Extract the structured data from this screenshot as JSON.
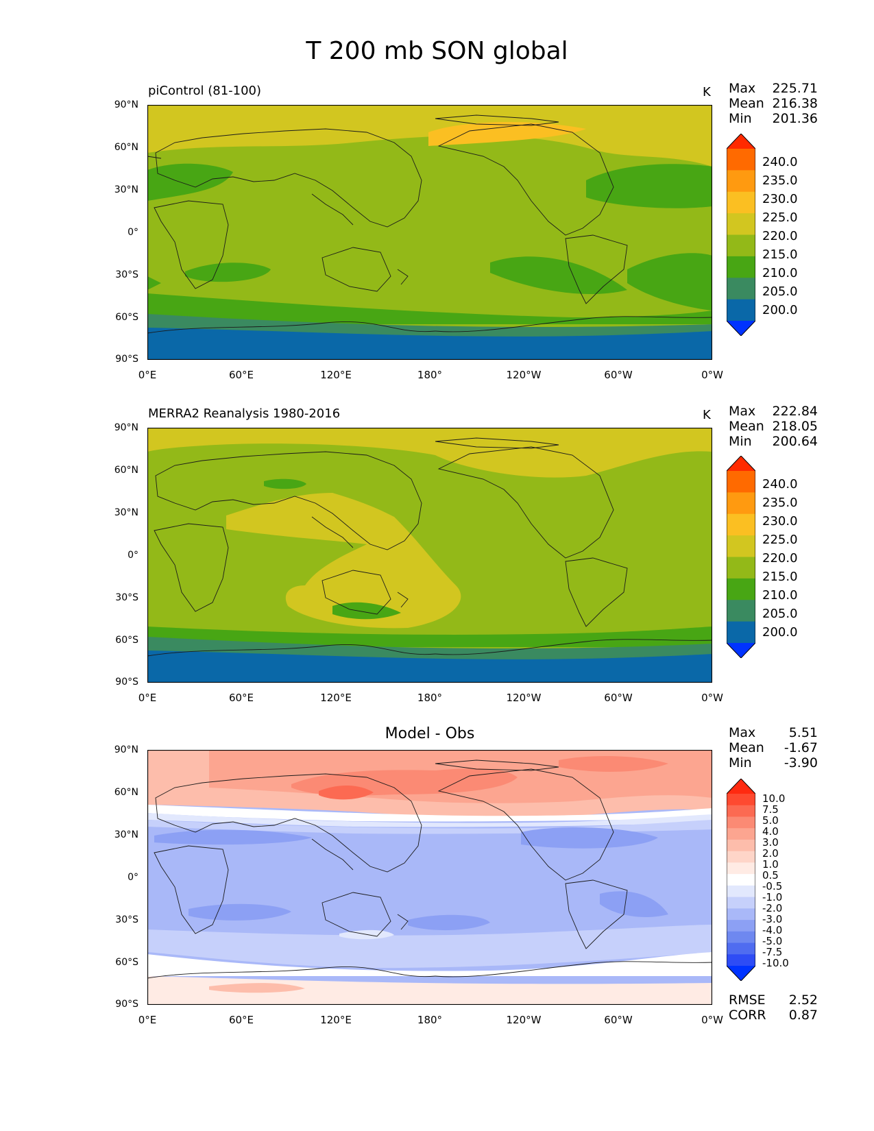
{
  "title": "T 200 mb SON global",
  "x_ticks": [
    "0°E",
    "60°E",
    "120°E",
    "180°",
    "120°W",
    "60°W",
    "0°W"
  ],
  "y_ticks": [
    "90°N",
    "60°N",
    "30°N",
    "0°",
    "30°S",
    "60°S",
    "90°S"
  ],
  "panels": [
    {
      "title": "piControl (81-100)",
      "units": "K",
      "stats": [
        {
          "label": "Max",
          "value": "225.71"
        },
        {
          "label": "Mean",
          "value": "216.38"
        },
        {
          "label": "Min",
          "value": "201.36"
        }
      ],
      "colorbar": {
        "levels": [
          "240.0",
          "235.0",
          "230.0",
          "225.0",
          "220.0",
          "215.0",
          "210.0",
          "205.0",
          "200.0"
        ],
        "colors": [
          "#ff2a00",
          "#ff6a00",
          "#ff9a10",
          "#fbbf22",
          "#d2c620",
          "#93b918",
          "#48a614",
          "#3a8a60",
          "#0a68a8",
          "#0033ff"
        ]
      }
    },
    {
      "title": "MERRA2 Reanalysis 1980-2016",
      "units": "K",
      "stats": [
        {
          "label": "Max",
          "value": "222.84"
        },
        {
          "label": "Mean",
          "value": "218.05"
        },
        {
          "label": "Min",
          "value": "200.64"
        }
      ],
      "colorbar": {
        "levels": [
          "240.0",
          "235.0",
          "230.0",
          "225.0",
          "220.0",
          "215.0",
          "210.0",
          "205.0",
          "200.0"
        ],
        "colors": [
          "#ff2a00",
          "#ff6a00",
          "#ff9a10",
          "#fbbf22",
          "#d2c620",
          "#93b918",
          "#48a614",
          "#3a8a60",
          "#0a68a8",
          "#0033ff"
        ]
      }
    },
    {
      "title": "Model - Obs",
      "units": "",
      "stats": [
        {
          "label": "Max",
          "value": "5.51"
        },
        {
          "label": "Mean",
          "value": "-1.67"
        },
        {
          "label": "Min",
          "value": "-3.90"
        }
      ],
      "extra_stats": [
        {
          "label": "RMSE",
          "value": "2.52"
        },
        {
          "label": "CORR",
          "value": "0.87"
        }
      ],
      "colorbar": {
        "levels": [
          "10.0",
          "7.5",
          "5.0",
          "4.0",
          "3.0",
          "2.0",
          "1.0",
          "0.5",
          "-0.5",
          "-1.0",
          "-2.0",
          "-3.0",
          "-4.0",
          "-5.0",
          "-7.5",
          "-10.0"
        ],
        "colors": [
          "#ff2a10",
          "#fe4a30",
          "#fc6a52",
          "#fb8a74",
          "#fca590",
          "#fdbdab",
          "#fed5c8",
          "#ffebe4",
          "#ffffff",
          "#e2e8fd",
          "#c6d0fb",
          "#a9b8f8",
          "#8ca0f4",
          "#6e88f0",
          "#4f6cf0",
          "#2e4cf5",
          "#0033ff"
        ]
      }
    }
  ]
}
